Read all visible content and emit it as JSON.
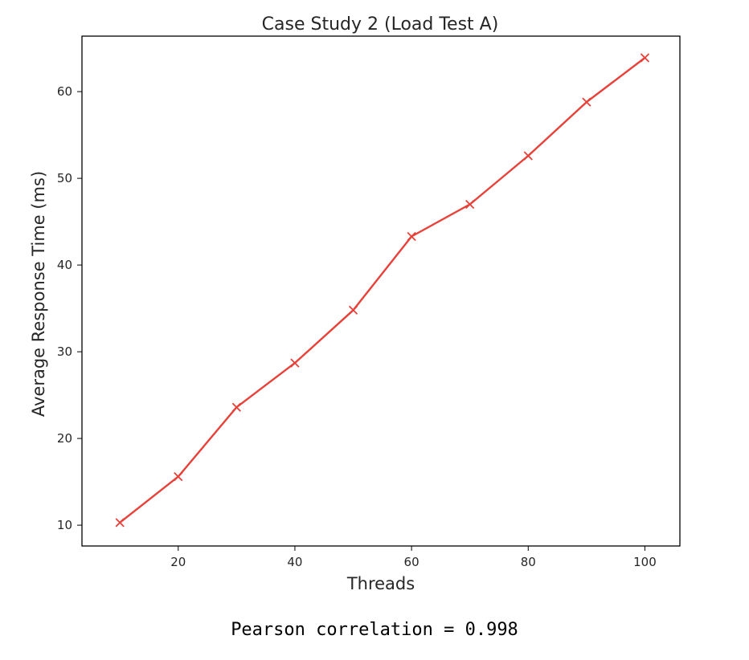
{
  "chart_data": {
    "type": "line",
    "title": "Case Study 2 (Load Test A)",
    "xlabel": "Threads",
    "ylabel": "Average Response Time (ms)",
    "x": [
      10,
      20,
      30,
      40,
      50,
      60,
      70,
      80,
      90,
      100
    ],
    "series": [
      {
        "values": [
          10.3,
          15.6,
          23.6,
          28.7,
          34.8,
          43.3,
          47.0,
          52.6,
          58.8,
          63.9
        ],
        "color": "#e8413a",
        "marker": "x"
      }
    ],
    "xlim": [
      3.5,
      106
    ],
    "ylim": [
      7.6,
      66.4
    ],
    "xticks": [
      20,
      40,
      60,
      80,
      100
    ],
    "yticks": [
      10,
      20,
      30,
      40,
      50,
      60
    ],
    "grid": false,
    "legend": false
  },
  "caption": "Pearson correlation = 0.998"
}
